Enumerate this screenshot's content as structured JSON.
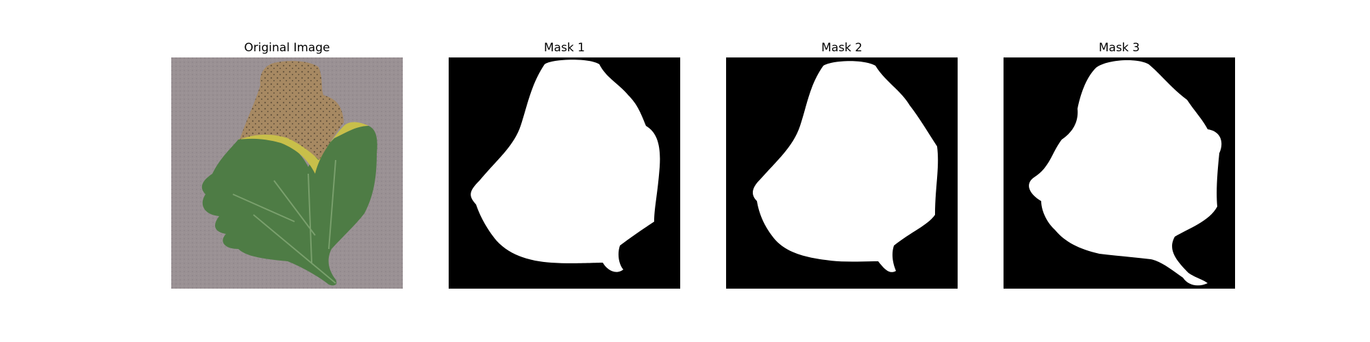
{
  "figure": {
    "panels": [
      {
        "title": "Original Image",
        "content": "tomato leaf photograph",
        "background_color": "#9a9194",
        "leaf_green": "#4e7c45",
        "leaf_brown": "#a78962",
        "leaf_yellow": "#c8bf4a"
      },
      {
        "title": "Mask 1",
        "content": "binary segmentation mask",
        "background_color": "#000000",
        "mask_color": "#ffffff"
      },
      {
        "title": "Mask 2",
        "content": "binary segmentation mask",
        "background_color": "#000000",
        "mask_color": "#ffffff"
      },
      {
        "title": "Mask 3",
        "content": "binary segmentation mask",
        "background_color": "#000000",
        "mask_color": "#ffffff"
      }
    ]
  }
}
